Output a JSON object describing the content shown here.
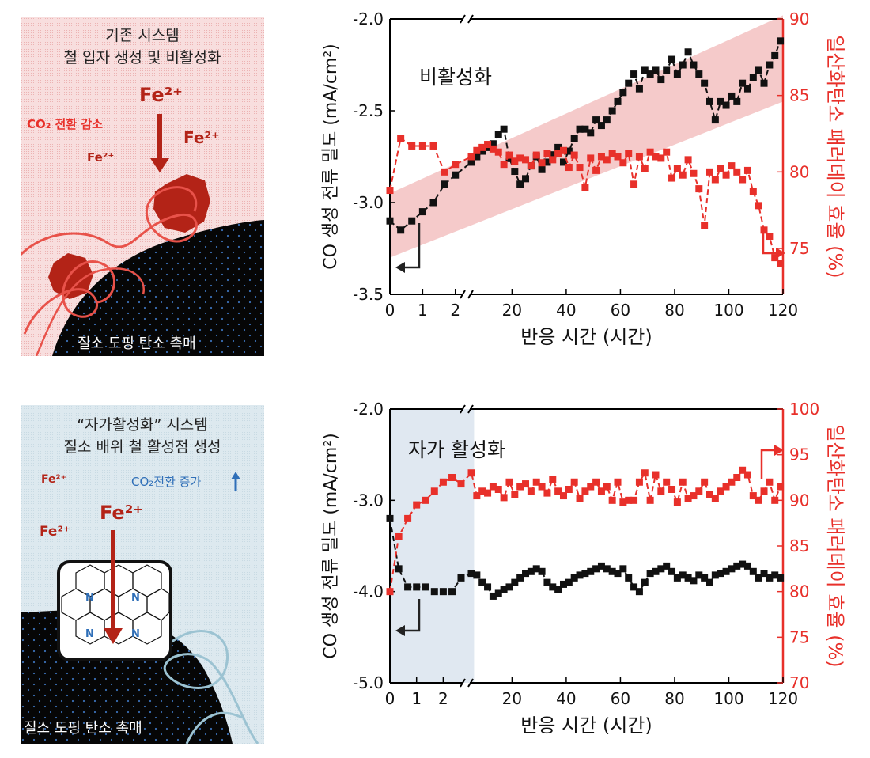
{
  "panels": {
    "top": {
      "title_line1": "기존 시스템",
      "title_line2": "철 입자 생성 및 비활성화",
      "fe_big": "Fe²⁺",
      "fe_right": "Fe²⁺",
      "fe_left": "Fe²⁺",
      "co2_label": "CO₂ 전환 감소",
      "catalyst_label": "질소 도핑 탄소 촉매",
      "bg_color": "#f6d8d8",
      "accent_color": "#c0281e"
    },
    "bottom": {
      "title_line1": "“자가활성화” 시스템",
      "title_line2": "질소 배위 철 활성점 생성",
      "fe_big": "Fe²⁺",
      "fe_left_top": "Fe²⁺",
      "fe_left_mid": "Fe²⁺",
      "co2_label": "CO₂전환 증가",
      "n_label": "N",
      "catalyst_label": "질소 도핑 탄소 촉매",
      "bg_color": "#dce8ee",
      "accent_color": "#c0281e"
    }
  },
  "chart_data": [
    {
      "type": "line",
      "annotation": "비활성화",
      "xlabel": "반응 시간 (시간)",
      "ylabel_left": "CO 생성 전류 밀도 (mA/cm²)",
      "ylabel_right": "일산화탄소 패러데이 효율 (%)",
      "x_segment1_ticks": [
        0,
        1,
        2
      ],
      "x_segment2_ticks": [
        20,
        40,
        60,
        80,
        100,
        120
      ],
      "ylim_left": [
        -3.5,
        -2.0
      ],
      "yticks_left": [
        "-2.0",
        "-2.5",
        "-3.0",
        "-3.5"
      ],
      "ylim_right": [
        72,
        90
      ],
      "yticks_right": [
        "90",
        "85",
        "80",
        "75"
      ],
      "colors": {
        "left_series": "#111111",
        "right_series": "#e8302a",
        "band": "#f2b8b8"
      },
      "series": [
        {
          "axis": "left",
          "x_early": [
            0,
            0.33,
            0.67,
            1.0,
            1.33,
            1.67,
            2.0
          ],
          "y_early": [
            -3.1,
            -3.15,
            -3.1,
            -3.05,
            -3.0,
            -2.9,
            -2.85
          ],
          "x_late": [
            5,
            7,
            9,
            11,
            13,
            15,
            17,
            19,
            21,
            23,
            25,
            27,
            29,
            31,
            33,
            35,
            37,
            39,
            41,
            43,
            45,
            47,
            49,
            51,
            53,
            55,
            57,
            59,
            61,
            63,
            65,
            67,
            69,
            71,
            73,
            75,
            77,
            79,
            81,
            83,
            85,
            87,
            89,
            91,
            93,
            95,
            97,
            99,
            101,
            103,
            105,
            107,
            109,
            111,
            113,
            115,
            117,
            119
          ],
          "y_late": [
            -2.78,
            -2.75,
            -2.72,
            -2.7,
            -2.68,
            -2.63,
            -2.6,
            -2.76,
            -2.83,
            -2.9,
            -2.87,
            -2.8,
            -2.75,
            -2.82,
            -2.78,
            -2.74,
            -2.7,
            -2.78,
            -2.72,
            -2.65,
            -2.6,
            -2.6,
            -2.62,
            -2.55,
            -2.58,
            -2.55,
            -2.5,
            -2.45,
            -2.4,
            -2.35,
            -2.3,
            -2.38,
            -2.28,
            -2.3,
            -2.28,
            -2.33,
            -2.28,
            -2.22,
            -2.3,
            -2.25,
            -2.18,
            -2.25,
            -2.3,
            -2.35,
            -2.45,
            -2.55,
            -2.45,
            -2.47,
            -2.42,
            -2.45,
            -2.35,
            -2.38,
            -2.32,
            -2.28,
            -2.35,
            -2.25,
            -2.2,
            -2.12
          ]
        },
        {
          "axis": "right",
          "x_early": [
            0,
            0.33,
            0.67,
            1.0,
            1.33,
            1.67,
            2.0
          ],
          "y_early": [
            78.8,
            82.2,
            81.7,
            81.7,
            81.7,
            80.0,
            80.5
          ],
          "x_late": [
            5,
            7,
            9,
            11,
            13,
            15,
            17,
            19,
            21,
            23,
            25,
            27,
            29,
            31,
            33,
            35,
            37,
            39,
            41,
            43,
            45,
            47,
            49,
            51,
            53,
            55,
            57,
            59,
            61,
            63,
            65,
            67,
            69,
            71,
            73,
            75,
            77,
            79,
            81,
            83,
            85,
            87,
            89,
            91,
            93,
            95,
            97,
            99,
            101,
            103,
            105,
            107,
            109,
            111,
            113,
            115,
            117,
            119
          ],
          "y_late": [
            81,
            81.4,
            81.6,
            81.8,
            81.5,
            81.3,
            80.5,
            81.1,
            80.7,
            80.9,
            80.8,
            80.4,
            81.1,
            80.6,
            81.2,
            80.8,
            81.2,
            81.4,
            80.3,
            81.1,
            80.3,
            79.0,
            80.9,
            80.1,
            81.0,
            80.8,
            81.2,
            81.0,
            80.6,
            81.2,
            79.2,
            81.0,
            80.2,
            81.3,
            81.0,
            80.9,
            81.3,
            79.6,
            80.2,
            79.8,
            80.8,
            79.9,
            78.9,
            76.5,
            80.0,
            79.5,
            80.2,
            79.8,
            80.4,
            80.0,
            79.5,
            80.1,
            78.7,
            77.8,
            76.2,
            75.8,
            74.4,
            74.0
          ]
        }
      ]
    },
    {
      "type": "line",
      "annotation": "자가 활성화",
      "xlabel": "반응 시간 (시간)",
      "ylabel_left": "CO 생성 전류 밀도 (mA/cm²)",
      "ylabel_right": "일산화탄소 패러데이 효율 (%)",
      "x_segment1_ticks": [
        0,
        1,
        2
      ],
      "x_segment2_ticks": [
        20,
        40,
        60,
        80,
        100,
        120
      ],
      "ylim_left": [
        -5.0,
        -2.0
      ],
      "yticks_left": [
        "-2.0",
        "-3.0",
        "-4.0",
        "-5.0"
      ],
      "ylim_right": [
        70,
        100
      ],
      "yticks_right": [
        "100",
        "95",
        "90",
        "85",
        "80",
        "75",
        "70"
      ],
      "colors": {
        "left_series": "#111111",
        "right_series": "#e8302a",
        "shade": "#dde6ef"
      },
      "series": [
        {
          "axis": "left",
          "x_early": [
            0,
            0.33,
            0.67,
            1.0,
            1.33,
            1.67,
            2.0,
            2.33,
            2.67
          ],
          "y_early": [
            -3.2,
            -3.75,
            -3.95,
            -3.95,
            -3.95,
            -4.0,
            -4.0,
            -4.0,
            -3.85
          ],
          "x_late": [
            5,
            7,
            9,
            11,
            13,
            15,
            17,
            19,
            21,
            23,
            25,
            27,
            29,
            31,
            33,
            35,
            37,
            39,
            41,
            43,
            45,
            47,
            49,
            51,
            53,
            55,
            57,
            59,
            61,
            63,
            65,
            67,
            69,
            71,
            73,
            75,
            77,
            79,
            81,
            83,
            85,
            87,
            89,
            91,
            93,
            95,
            97,
            99,
            101,
            103,
            105,
            107,
            109,
            111,
            113,
            115,
            117,
            119
          ],
          "y_late": [
            -3.8,
            -3.82,
            -3.9,
            -3.95,
            -4.05,
            -4.02,
            -3.98,
            -3.95,
            -3.9,
            -3.85,
            -3.8,
            -3.78,
            -3.75,
            -3.78,
            -3.9,
            -3.95,
            -3.98,
            -3.92,
            -3.9,
            -3.85,
            -3.82,
            -3.8,
            -3.78,
            -3.75,
            -3.72,
            -3.75,
            -3.78,
            -3.8,
            -3.75,
            -3.85,
            -3.95,
            -4.0,
            -3.9,
            -3.8,
            -3.78,
            -3.75,
            -3.72,
            -3.78,
            -3.85,
            -3.82,
            -3.85,
            -3.88,
            -3.82,
            -3.85,
            -3.9,
            -3.82,
            -3.8,
            -3.78,
            -3.75,
            -3.72,
            -3.7,
            -3.72,
            -3.78,
            -3.85,
            -3.8,
            -3.85,
            -3.82,
            -3.85
          ]
        },
        {
          "axis": "right",
          "x_early": [
            0,
            0.33,
            0.67,
            1.0,
            1.33,
            1.67,
            2.0,
            2.33,
            2.67
          ],
          "y_early": [
            80.0,
            86.0,
            88.0,
            89.5,
            90.0,
            91.0,
            92.0,
            92.5,
            91.8
          ],
          "x_late": [
            5,
            7,
            9,
            11,
            13,
            15,
            17,
            19,
            21,
            23,
            25,
            27,
            29,
            31,
            33,
            35,
            37,
            39,
            41,
            43,
            45,
            47,
            49,
            51,
            53,
            55,
            57,
            59,
            61,
            63,
            65,
            67,
            69,
            71,
            73,
            75,
            77,
            79,
            81,
            83,
            85,
            87,
            89,
            91,
            93,
            95,
            97,
            99,
            101,
            103,
            105,
            107,
            109,
            111,
            113,
            115,
            117,
            119
          ],
          "y_late": [
            93.0,
            90.5,
            91.0,
            90.8,
            91.5,
            91.2,
            90.3,
            92.0,
            90.6,
            91.5,
            91.8,
            91.0,
            92.0,
            91.5,
            90.8,
            92.3,
            91.0,
            90.5,
            91.2,
            92.0,
            90.2,
            91.0,
            91.5,
            92.0,
            91.0,
            91.5,
            90.0,
            92.0,
            89.8,
            90.0,
            90.0,
            92.0,
            93.0,
            90.0,
            92.8,
            91.0,
            92.0,
            91.2,
            89.8,
            92.0,
            90.2,
            90.5,
            91.0,
            92.0,
            90.6,
            90.2,
            91.0,
            91.5,
            92.0,
            92.5,
            93.3,
            92.8,
            90.5,
            90.0,
            91.0,
            92.0,
            90.0,
            91.5
          ]
        }
      ]
    }
  ]
}
